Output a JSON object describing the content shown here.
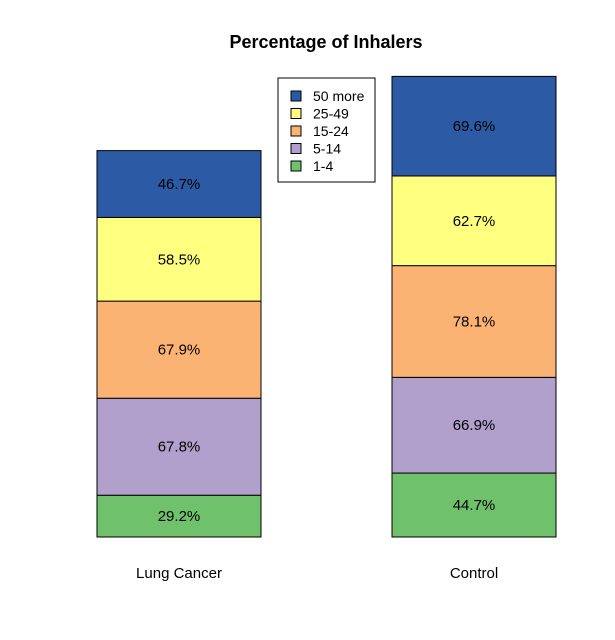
{
  "chart_data": {
    "type": "bar",
    "stacked": true,
    "title": "Percentage of Inhalers",
    "xlabel": "",
    "ylabel": "",
    "categories": [
      "Lung Cancer",
      "Control"
    ],
    "series": [
      {
        "name": "1-4",
        "color": "#6fc16c",
        "values": [
          29.2,
          44.7
        ]
      },
      {
        "name": "5-14",
        "color": "#b19fcc",
        "values": [
          67.8,
          66.9
        ]
      },
      {
        "name": "15-24",
        "color": "#fbb374",
        "values": [
          67.9,
          78.1
        ]
      },
      {
        "name": "25-49",
        "color": "#ffff80",
        "values": [
          58.5,
          62.7
        ]
      },
      {
        "name": "50 more",
        "color": "#2d5aa5",
        "values": [
          46.7,
          69.6
        ]
      }
    ],
    "value_labels": [
      [
        "29.2%",
        "44.7%"
      ],
      [
        "67.8%",
        "66.9%"
      ],
      [
        "67.9%",
        "78.1%"
      ],
      [
        "58.5%",
        "62.7%"
      ],
      [
        "46.7%",
        "69.6%"
      ]
    ],
    "legend": {
      "position": "top-center",
      "entries": [
        "50 more",
        "25-49",
        "15-24",
        "5-14",
        "1-4"
      ]
    },
    "grid": false,
    "axes_visible": false
  }
}
